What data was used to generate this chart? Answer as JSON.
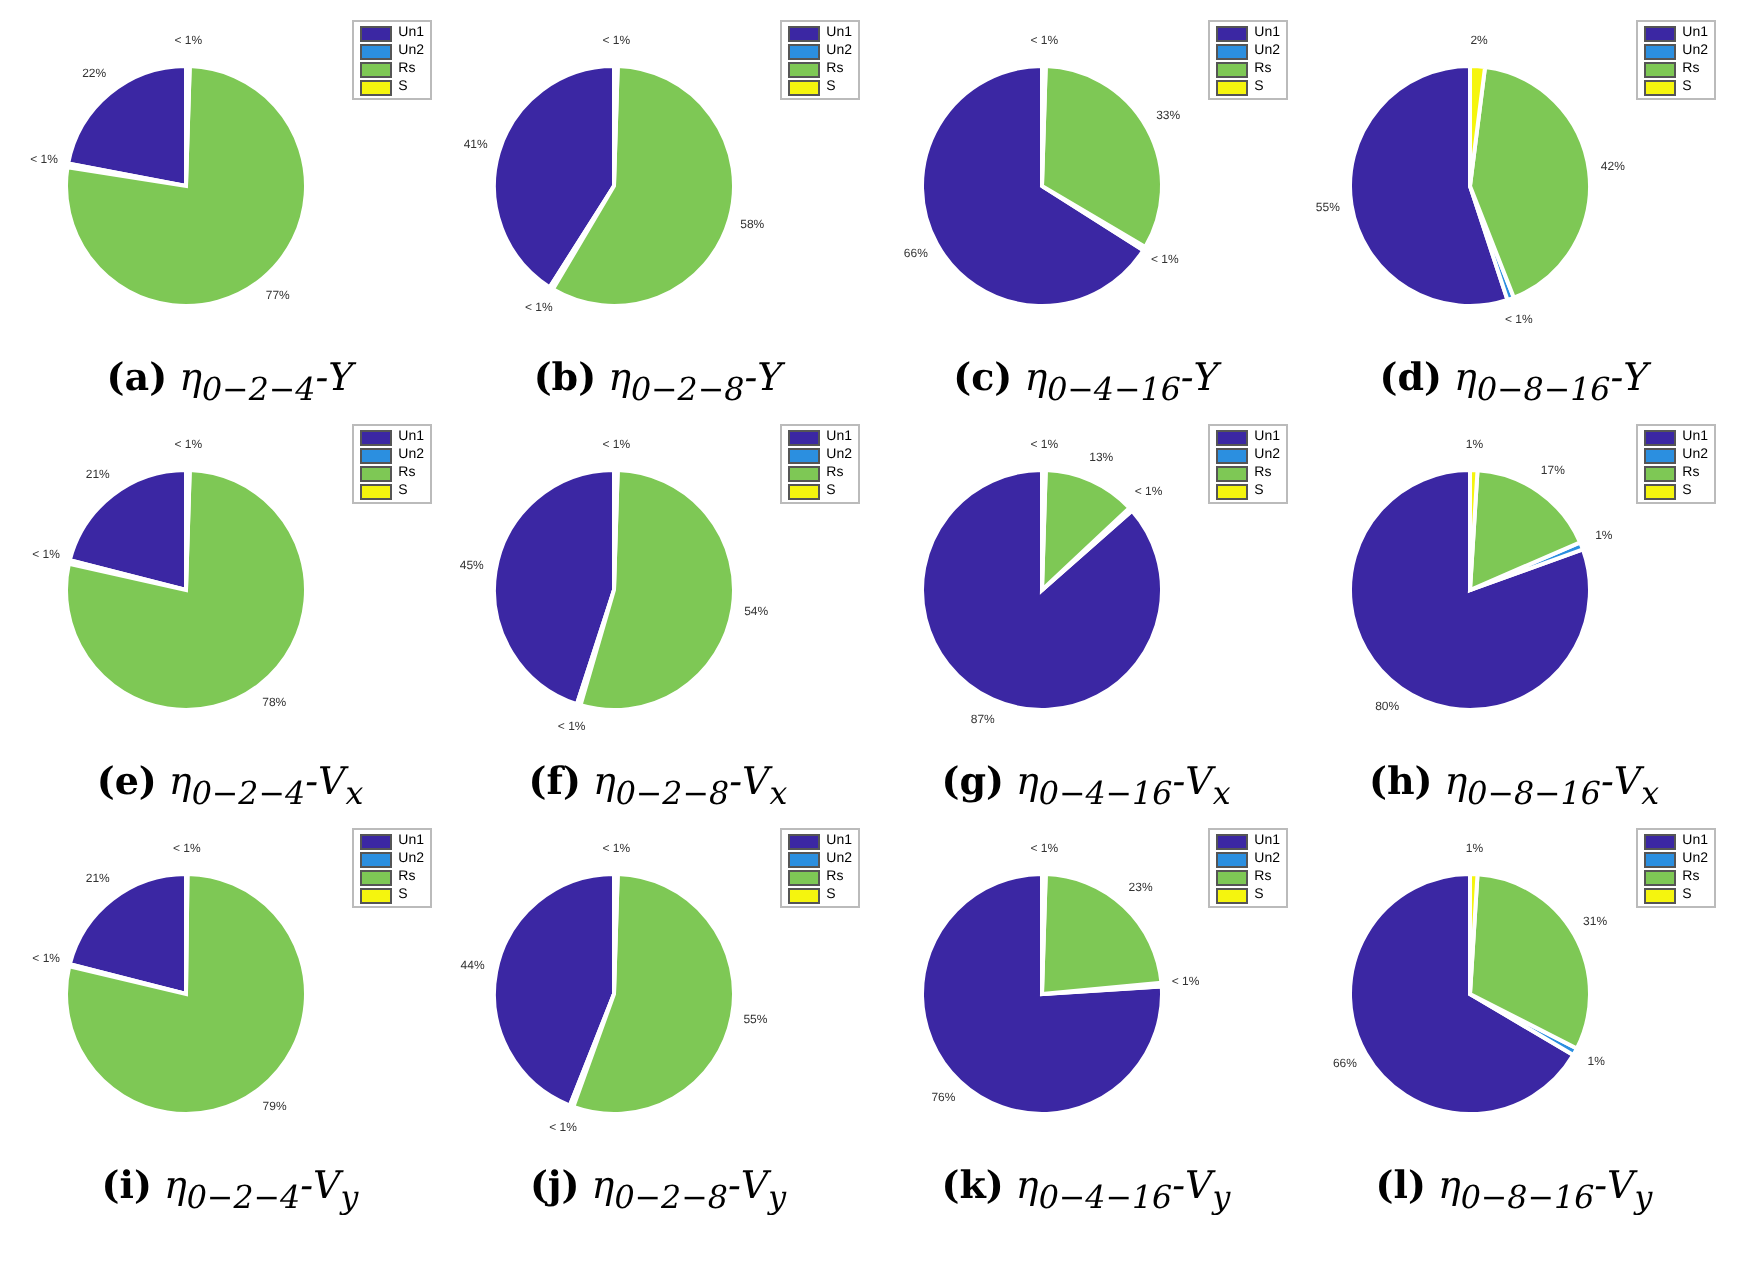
{
  "chart_data": [
    {
      "type": "pie",
      "title": "(a) η$_{0−2−4}$-Y",
      "categories": [
        "Un1",
        "Un2",
        "Rs",
        "S"
      ],
      "values": [
        22,
        0.5,
        77,
        0.5
      ],
      "value_labels": [
        "22%",
        "< 1%",
        "77%",
        "< 1%"
      ],
      "colors": [
        "#3b27a3",
        "#2b8fe0",
        "#7ec855",
        "#f5f50e"
      ],
      "legend": "top right"
    },
    {
      "type": "pie",
      "title": "(b) η$_{0−2−8}$-Y",
      "categories": [
        "Un1",
        "Un2",
        "Rs",
        "S"
      ],
      "values": [
        41,
        0.5,
        58,
        0.5
      ],
      "value_labels": [
        "41%",
        "< 1%",
        "58%",
        "< 1%"
      ],
      "colors": [
        "#3b27a3",
        "#2b8fe0",
        "#7ec855",
        "#f5f50e"
      ],
      "legend": "top right"
    },
    {
      "type": "pie",
      "title": "(c) η$_{0−4−16}$-Y",
      "categories": [
        "Un1",
        "Un2",
        "Rs",
        "S"
      ],
      "values": [
        66,
        0.5,
        33,
        0.5
      ],
      "value_labels": [
        "66%",
        "< 1%",
        "33%",
        "< 1%"
      ],
      "colors": [
        "#3b27a3",
        "#2b8fe0",
        "#7ec855",
        "#f5f50e"
      ],
      "legend": "top right"
    },
    {
      "type": "pie",
      "title": "(d) η$_{0−8−16}$-Y",
      "categories": [
        "Un1",
        "Un2",
        "Rs",
        "S"
      ],
      "values": [
        55,
        0.9,
        42,
        2
      ],
      "value_labels": [
        "55%",
        "< 1%",
        "42%",
        "2%"
      ],
      "colors": [
        "#3b27a3",
        "#2b8fe0",
        "#7ec855",
        "#f5f50e"
      ],
      "legend": "top right"
    },
    {
      "type": "pie",
      "title": "(e) η$_{0−2−4}$-V$_{x}$",
      "categories": [
        "Un1",
        "Un2",
        "Rs",
        "S"
      ],
      "values": [
        21,
        0.5,
        78,
        0.5
      ],
      "value_labels": [
        "21%",
        "< 1%",
        "78%",
        "< 1%"
      ],
      "colors": [
        "#3b27a3",
        "#2b8fe0",
        "#7ec855",
        "#f5f50e"
      ],
      "legend": "top right"
    },
    {
      "type": "pie",
      "title": "(f) η$_{0−2−8}$-V$_{x}$",
      "categories": [
        "Un1",
        "Un2",
        "Rs",
        "S"
      ],
      "values": [
        45,
        0.5,
        54,
        0.5
      ],
      "value_labels": [
        "45%",
        "< 1%",
        "54%",
        "< 1%"
      ],
      "colors": [
        "#3b27a3",
        "#2b8fe0",
        "#7ec855",
        "#f5f50e"
      ],
      "legend": "top right"
    },
    {
      "type": "pie",
      "title": "(g) η$_{0−4−16}$-V$_{x}$",
      "categories": [
        "Un1",
        "Un2",
        "Rs",
        "S"
      ],
      "values": [
        86.5,
        0.5,
        12.5,
        0.5
      ],
      "value_labels": [
        "87%",
        "< 1%",
        "13%",
        "< 1%"
      ],
      "colors": [
        "#3b27a3",
        "#2b8fe0",
        "#7ec855",
        "#f5f50e"
      ],
      "legend": "top right"
    },
    {
      "type": "pie",
      "title": "(h) η$_{0−8−16}$-V$_{x}$",
      "categories": [
        "Un1",
        "Un2",
        "Rs",
        "S"
      ],
      "values": [
        80.5,
        1,
        17.5,
        1
      ],
      "value_labels": [
        "80%",
        "1%",
        "17%",
        "1%"
      ],
      "colors": [
        "#3b27a3",
        "#2b8fe0",
        "#7ec855",
        "#f5f50e"
      ],
      "legend": "top right"
    },
    {
      "type": "pie",
      "title": "(i) η$_{0−2−4}$-V$_{y}$",
      "categories": [
        "Un1",
        "Un2",
        "Rs",
        "S"
      ],
      "values": [
        21,
        0.3,
        78.5,
        0.2
      ],
      "value_labels": [
        "21%",
        "< 1%",
        "79%",
        "< 1%"
      ],
      "colors": [
        "#3b27a3",
        "#2b8fe0",
        "#7ec855",
        "#f5f50e"
      ],
      "legend": "top right"
    },
    {
      "type": "pie",
      "title": "(j) η$_{0−2−8}$-V$_{y}$",
      "categories": [
        "Un1",
        "Un2",
        "Rs",
        "S"
      ],
      "values": [
        44,
        0.5,
        55,
        0.5
      ],
      "value_labels": [
        "44%",
        "< 1%",
        "55%",
        "< 1%"
      ],
      "colors": [
        "#3b27a3",
        "#2b8fe0",
        "#7ec855",
        "#f5f50e"
      ],
      "legend": "top right"
    },
    {
      "type": "pie",
      "title": "(k) η$_{0−4−16}$-V$_{y}$",
      "categories": [
        "Un1",
        "Un2",
        "Rs",
        "S"
      ],
      "values": [
        76,
        0.5,
        23,
        0.5
      ],
      "value_labels": [
        "76%",
        "< 1%",
        "23%",
        "< 1%"
      ],
      "colors": [
        "#3b27a3",
        "#2b8fe0",
        "#7ec855",
        "#f5f50e"
      ],
      "legend": "top right"
    },
    {
      "type": "pie",
      "title": "(l) η$_{0−8−16}$-V$_{y}$",
      "categories": [
        "Un1",
        "Un2",
        "Rs",
        "S"
      ],
      "values": [
        66.5,
        1,
        31.5,
        1
      ],
      "value_labels": [
        "66%",
        "1%",
        "31%",
        "1%"
      ],
      "colors": [
        "#3b27a3",
        "#2b8fe0",
        "#7ec855",
        "#f5f50e"
      ],
      "legend": "top right"
    }
  ]
}
